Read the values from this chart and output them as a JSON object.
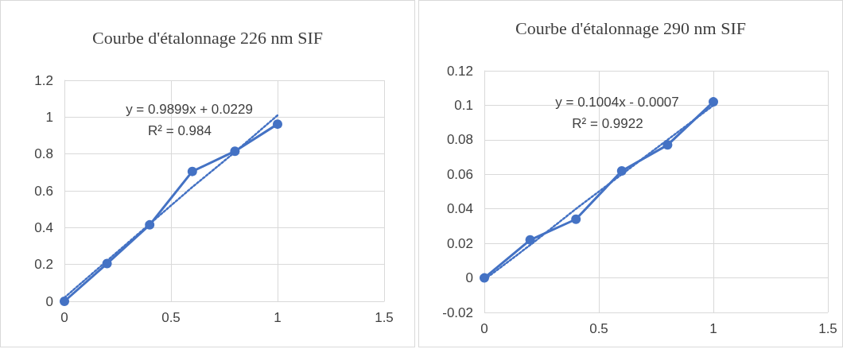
{
  "chart_data": [
    {
      "type": "line",
      "title": "Courbe d'étalonnage 226 nm SIF",
      "x": [
        0,
        0.2,
        0.4,
        0.6,
        0.8,
        1
      ],
      "series": [
        {
          "color": "#4472c4",
          "values": [
            0,
            0.205,
            0.415,
            0.705,
            0.815,
            0.962
          ],
          "marker": "circle",
          "line_style": "solid"
        },
        {
          "color": "#4472c4",
          "values": [
            0.02,
            0.22,
            0.42,
            0.62,
            0.81,
            1.01
          ],
          "marker": "none",
          "line_style": "dotted"
        }
      ],
      "annotations": [
        "y = 0.9899x + 0.0229",
        "R² = 0.984"
      ],
      "xlim": [
        0,
        1.5
      ],
      "xticks": [
        0,
        0.5,
        1,
        1.5
      ],
      "ylim": [
        0,
        1.2
      ],
      "yticks": [
        0,
        0.2,
        0.4,
        0.6,
        0.8,
        1,
        1.2
      ],
      "grid": true
    },
    {
      "type": "line",
      "title": "Courbe d'étalonnage 290 nm SIF",
      "x": [
        0,
        0.2,
        0.4,
        0.6,
        0.8,
        1
      ],
      "series": [
        {
          "color": "#4472c4",
          "values": [
            0,
            0.022,
            0.034,
            0.062,
            0.077,
            0.102
          ],
          "marker": "circle",
          "line_style": "solid"
        },
        {
          "color": "#4472c4",
          "values": [
            -0.001,
            0.019,
            0.04,
            0.06,
            0.08,
            0.1
          ],
          "marker": "none",
          "line_style": "dotted"
        }
      ],
      "annotations": [
        "y = 0.1004x - 0.0007",
        "R² = 0.9922"
      ],
      "xlim": [
        0,
        1.5
      ],
      "xticks": [
        0,
        0.5,
        1,
        1.5
      ],
      "ylim": [
        -0.02,
        0.12
      ],
      "yticks": [
        -0.02,
        0,
        0.02,
        0.04,
        0.06,
        0.08,
        0.1,
        0.12
      ],
      "grid": true
    }
  ]
}
